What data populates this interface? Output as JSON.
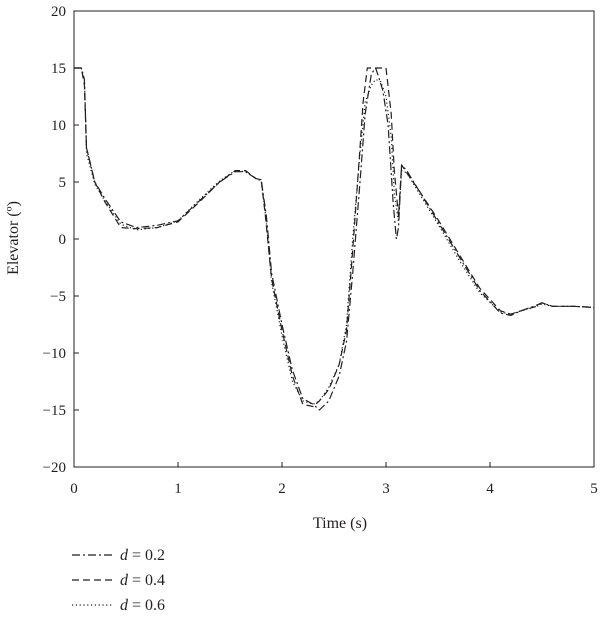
{
  "chart_data": {
    "type": "line",
    "title": "",
    "xlabel": "Time (s)",
    "ylabel": "Elevator (º)",
    "xlim": [
      0,
      5
    ],
    "ylim": [
      -20,
      20
    ],
    "xticks": [
      0,
      1,
      2,
      3,
      4,
      5
    ],
    "yticks": [
      -20,
      -15,
      -10,
      -5,
      0,
      5,
      10,
      15,
      20
    ],
    "grid": false,
    "legend_position": "bottom-left",
    "series": [
      {
        "name": "d = 0.2",
        "name_var": "d",
        "name_value": "= 0.2",
        "style": "dashdot",
        "color": "#231f20",
        "x": [
          0,
          0.07,
          0.1,
          0.12,
          0.2,
          0.3,
          0.45,
          0.6,
          0.8,
          1.0,
          1.2,
          1.4,
          1.55,
          1.65,
          1.75,
          1.8,
          1.85,
          1.9,
          2.0,
          2.1,
          2.2,
          2.3,
          2.36,
          2.45,
          2.55,
          2.62,
          2.68,
          2.75,
          2.8,
          2.86,
          2.9,
          2.93,
          2.97,
          3.02,
          3.07,
          3.1,
          3.12,
          3.15,
          3.2,
          3.3,
          3.5,
          3.7,
          3.9,
          4.1,
          4.2,
          4.3,
          4.45,
          4.5,
          4.6,
          4.8,
          5.0
        ],
        "y": [
          15,
          15,
          14,
          8,
          5,
          3.5,
          1.5,
          1.0,
          1.2,
          1.6,
          3.3,
          5.0,
          5.9,
          5.9,
          5.3,
          5.2,
          2.0,
          -3.0,
          -7.5,
          -11.5,
          -14.0,
          -14.5,
          -15.0,
          -14.2,
          -12.0,
          -9.0,
          -3.0,
          5.0,
          11.0,
          14.5,
          15.0,
          14.2,
          13.0,
          10.0,
          3.0,
          0.0,
          1.0,
          6.5,
          6.0,
          4.5,
          1.5,
          -1.5,
          -4.5,
          -6.5,
          -6.7,
          -6.3,
          -5.8,
          -5.6,
          -5.9,
          -5.9,
          -6.0
        ]
      },
      {
        "name": "d = 0.4",
        "name_var": "d",
        "name_value": "= 0.4",
        "style": "dashed",
        "color": "#231f20",
        "x": [
          0,
          0.07,
          0.1,
          0.12,
          0.2,
          0.3,
          0.45,
          0.6,
          0.8,
          1.0,
          1.2,
          1.4,
          1.55,
          1.65,
          1.75,
          1.8,
          1.84,
          1.9,
          2.0,
          2.1,
          2.2,
          2.3,
          2.36,
          2.45,
          2.55,
          2.62,
          2.68,
          2.75,
          2.78,
          2.82,
          2.9,
          2.95,
          3.0,
          3.05,
          3.08,
          3.12,
          3.15,
          3.2,
          3.3,
          3.5,
          3.7,
          3.9,
          4.1,
          4.2,
          4.3,
          4.45,
          4.5,
          4.6,
          4.8,
          5.0
        ],
        "y": [
          15,
          15,
          13.5,
          8,
          5,
          3.2,
          1.0,
          0.9,
          1.0,
          1.5,
          3.2,
          5.0,
          6.0,
          6.0,
          5.3,
          5.2,
          2.0,
          -3.5,
          -8.0,
          -12.0,
          -14.5,
          -14.7,
          -14.2,
          -13.2,
          -11.0,
          -8.0,
          -1.0,
          8.0,
          12.0,
          15.0,
          15.0,
          15.0,
          15.0,
          11.0,
          6.0,
          2.0,
          6.5,
          5.8,
          4.5,
          1.7,
          -1.3,
          -4.3,
          -6.3,
          -6.6,
          -6.3,
          -5.9,
          -5.6,
          -5.9,
          -5.9,
          -6.0
        ]
      },
      {
        "name": "d = 0.6",
        "name_var": "d",
        "name_value": "= 0.6",
        "style": "dotted",
        "color": "#231f20",
        "x": [
          0,
          0.07,
          0.1,
          0.12,
          0.2,
          0.3,
          0.45,
          0.6,
          0.8,
          1.0,
          1.2,
          1.4,
          1.55,
          1.65,
          1.75,
          1.8,
          1.85,
          1.9,
          2.0,
          2.1,
          2.2,
          2.3,
          2.36,
          2.45,
          2.55,
          2.62,
          2.68,
          2.75,
          2.8,
          2.86,
          2.9,
          2.95,
          3.0,
          3.05,
          3.08,
          3.12,
          3.15,
          3.2,
          3.3,
          3.5,
          3.7,
          3.9,
          4.1,
          4.2,
          4.3,
          4.45,
          4.5,
          4.6,
          4.8,
          5.0
        ],
        "y": [
          15,
          15,
          14,
          7.5,
          4.8,
          3.3,
          1.3,
          0.8,
          1.0,
          1.6,
          3.4,
          5.1,
          6.0,
          5.9,
          5.3,
          5.1,
          1.5,
          -3.8,
          -8.5,
          -12.5,
          -14.2,
          -14.5,
          -14.2,
          -13.0,
          -11.0,
          -7.5,
          0.0,
          7.5,
          12.0,
          13.5,
          14.0,
          13.8,
          12.5,
          9.0,
          4.0,
          1.5,
          6.0,
          5.8,
          4.3,
          1.3,
          -1.8,
          -4.7,
          -6.4,
          -6.6,
          -6.3,
          -5.9,
          -5.7,
          -5.9,
          -5.9,
          -6.0
        ]
      }
    ]
  }
}
